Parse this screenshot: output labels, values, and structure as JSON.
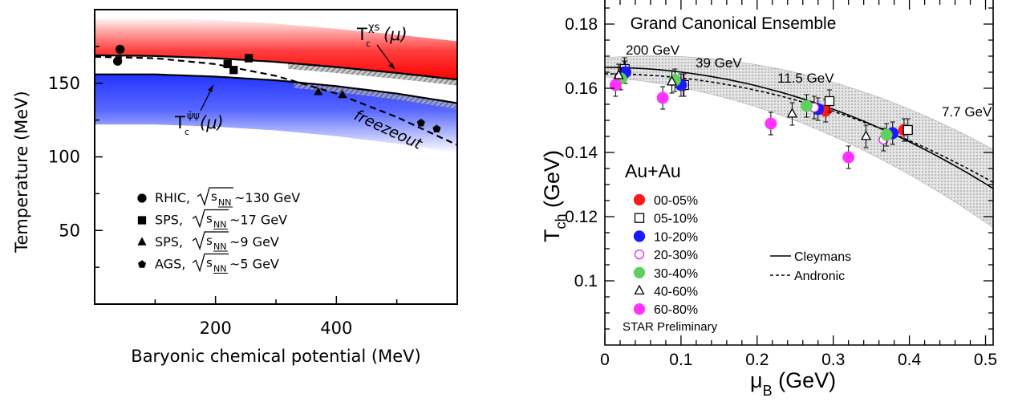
{
  "colors": {
    "red_band": "#ff1a1a",
    "blue_band": "#2a3cff",
    "frame": "#000000",
    "gray_band": "#c8c8c8"
  },
  "chart_data": [
    {
      "type": "line",
      "xlabel": "Baryonic chemical potential (MeV)",
      "ylabel": "Temperature (MeV)",
      "xlim": [
        0,
        600
      ],
      "ylim": [
        0,
        200
      ],
      "x_ticks": [
        "200",
        "400"
      ],
      "y_ticks": [
        "50",
        "100",
        "150"
      ],
      "labels": {
        "tc_chis": "T",
        "tc_chis_sup": "χs",
        "tc_chis_tail": "(μ)",
        "tc_psi": "T",
        "tc_psi_sup": "ψ̄ψ",
        "tc_psi_tail": "(μ)",
        "freezeout": "freezeout"
      },
      "curves": [
        {
          "name": "Tc_chis",
          "style": "solid",
          "x": [
            0,
            100,
            200,
            300,
            400,
            500,
            600
          ],
          "y": [
            169,
            168.5,
            167,
            164.5,
            161,
            157,
            152.5
          ]
        },
        {
          "name": "Tc_psibarpsi",
          "style": "solid",
          "x": [
            0,
            100,
            200,
            300,
            400,
            500,
            600
          ],
          "y": [
            156,
            156,
            154.5,
            152,
            148,
            143,
            136.5
          ]
        },
        {
          "name": "freezeout",
          "style": "dashed",
          "x": [
            0,
            100,
            200,
            300,
            400,
            500,
            600
          ],
          "y": [
            168,
            167,
            163,
            155,
            143,
            127,
            108
          ]
        }
      ],
      "legend": [
        {
          "marker": "circle",
          "system": "RHIC,",
          "energy": "~130 GeV"
        },
        {
          "marker": "square",
          "system": "SPS,",
          "energy": "~17 GeV"
        },
        {
          "marker": "triangle",
          "system": "SPS,",
          "energy": "~9 GeV"
        },
        {
          "marker": "pentagon",
          "system": "AGS,",
          "energy": "~5 GeV"
        }
      ],
      "sqrt_label": "s",
      "sqrt_sub": "NN",
      "points": [
        {
          "marker": "circle",
          "x": 38,
          "y": 165
        },
        {
          "marker": "circle",
          "x": 42,
          "y": 173
        },
        {
          "marker": "square",
          "x": 220,
          "y": 163
        },
        {
          "marker": "square",
          "x": 230,
          "y": 159
        },
        {
          "marker": "square",
          "x": 255,
          "y": 167
        },
        {
          "marker": "triangle",
          "x": 370,
          "y": 144
        },
        {
          "marker": "triangle",
          "x": 410,
          "y": 142
        },
        {
          "marker": "pentagon",
          "x": 540,
          "y": 123
        },
        {
          "marker": "pentagon",
          "x": 566,
          "y": 119
        }
      ]
    },
    {
      "type": "scatter",
      "title": "Grand Canonical Ensemble",
      "xlabel": "μ",
      "xlabel_sub": "B",
      "xlabel_unit": " (GeV)",
      "ylabel": "T",
      "ylabel_sub": "ch",
      "ylabel_unit": " (GeV)",
      "xlim": [
        0,
        0.51
      ],
      "ylim": [
        0.08,
        0.19
      ],
      "x_ticks": [
        "0",
        "0.1",
        "0.2",
        "0.3",
        "0.4",
        "0.5"
      ],
      "y_ticks": [
        "0.1",
        "0.12",
        "0.14",
        "0.16",
        "0.18"
      ],
      "energy_labels": [
        "200 GeV",
        "39 GeV",
        "11.5 GeV",
        "7.7 GeV"
      ],
      "system": "Au+Au",
      "legend": [
        {
          "label": "00-05%",
          "color": "#ff1a1a",
          "marker": "circle"
        },
        {
          "label": "05-10%",
          "color": "#000000",
          "marker": "open-square"
        },
        {
          "label": "10-20%",
          "color": "#1a1aff",
          "marker": "circle"
        },
        {
          "label": "20-30%",
          "color": "#e020e0",
          "marker": "open-circle"
        },
        {
          "label": "30-40%",
          "color": "#5fcf5f",
          "marker": "circle"
        },
        {
          "label": "40-60%",
          "color": "#000000",
          "marker": "open-triangle"
        },
        {
          "label": "60-80%",
          "color": "#ff33ff",
          "marker": "circle"
        }
      ],
      "models": [
        {
          "name": "Cleymans",
          "style": "solid"
        },
        {
          "name": "Andronic",
          "style": "dashed"
        }
      ],
      "preliminary": "STAR Preliminary",
      "points": [
        {
          "c": "00-05%",
          "x": 0.025,
          "y": 0.165
        },
        {
          "c": "05-10%",
          "x": 0.026,
          "y": 0.166
        },
        {
          "c": "10-20%",
          "x": 0.027,
          "y": 0.165
        },
        {
          "c": "30-40%",
          "x": 0.021,
          "y": 0.163
        },
        {
          "c": "40-60%",
          "x": 0.018,
          "y": 0.164
        },
        {
          "c": "60-80%",
          "x": 0.014,
          "y": 0.161
        },
        {
          "c": "00-05%",
          "x": 0.103,
          "y": 0.161
        },
        {
          "c": "05-10%",
          "x": 0.104,
          "y": 0.161
        },
        {
          "c": "10-20%",
          "x": 0.1,
          "y": 0.161
        },
        {
          "c": "30-40%",
          "x": 0.092,
          "y": 0.1625
        },
        {
          "c": "40-60%",
          "x": 0.088,
          "y": 0.162
        },
        {
          "c": "60-80%",
          "x": 0.076,
          "y": 0.157
        },
        {
          "c": "00-05%",
          "x": 0.29,
          "y": 0.153
        },
        {
          "c": "05-10%",
          "x": 0.295,
          "y": 0.156
        },
        {
          "c": "10-20%",
          "x": 0.28,
          "y": 0.1535
        },
        {
          "c": "20-30%",
          "x": 0.275,
          "y": 0.154
        },
        {
          "c": "30-40%",
          "x": 0.265,
          "y": 0.1545
        },
        {
          "c": "40-60%",
          "x": 0.246,
          "y": 0.152
        },
        {
          "c": "60-80%",
          "x": 0.218,
          "y": 0.149
        },
        {
          "c": "00-05%",
          "x": 0.393,
          "y": 0.147
        },
        {
          "c": "05-10%",
          "x": 0.398,
          "y": 0.147
        },
        {
          "c": "10-20%",
          "x": 0.378,
          "y": 0.146
        },
        {
          "c": "20-30%",
          "x": 0.366,
          "y": 0.144
        },
        {
          "c": "30-40%",
          "x": 0.37,
          "y": 0.1455
        },
        {
          "c": "40-60%",
          "x": 0.343,
          "y": 0.145
        },
        {
          "c": "60-80%",
          "x": 0.32,
          "y": 0.1385
        }
      ]
    }
  ]
}
